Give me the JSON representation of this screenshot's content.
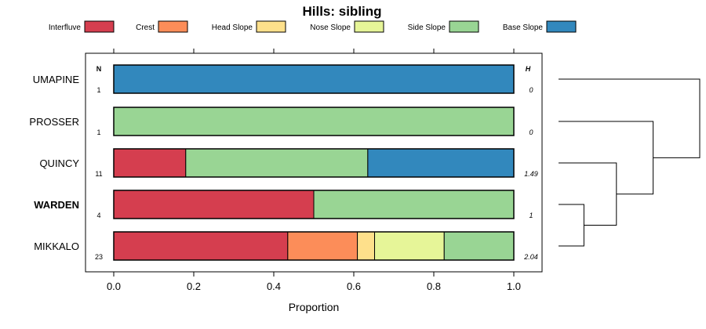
{
  "chart_data": {
    "type": "bar",
    "subtype": "stacked-horizontal-proportion",
    "title": "Hills: sibling",
    "xlabel": "Proportion",
    "xlim": [
      0,
      1
    ],
    "xticks": [
      "0.0",
      "0.2",
      "0.4",
      "0.6",
      "0.8",
      "1.0"
    ],
    "n_column_header": "N",
    "h_column_header": "H",
    "legend": [
      {
        "name": "Interfluve",
        "color": "#D53E4F"
      },
      {
        "name": "Crest",
        "color": "#FC8D59"
      },
      {
        "name": "Head Slope",
        "color": "#FEE08B"
      },
      {
        "name": "Nose Slope",
        "color": "#E6F598"
      },
      {
        "name": "Side Slope",
        "color": "#99D594"
      },
      {
        "name": "Base Slope",
        "color": "#3288BD"
      }
    ],
    "categories": [
      "UMAPINE",
      "PROSSER",
      "QUINCY",
      "WARDEN",
      "MIKKALO"
    ],
    "bold_category": "WARDEN",
    "n_values": [
      "1",
      "1",
      "11",
      "4",
      "23"
    ],
    "h_values": [
      "0",
      "0",
      "1.49",
      "1",
      "2.04"
    ],
    "series": [
      {
        "name": "Interfluve",
        "values": [
          0,
          0,
          0.18,
          0.5,
          0.435
        ]
      },
      {
        "name": "Crest",
        "values": [
          0,
          0,
          0,
          0,
          0.174
        ]
      },
      {
        "name": "Head Slope",
        "values": [
          0,
          0,
          0,
          0,
          0.043
        ]
      },
      {
        "name": "Nose Slope",
        "values": [
          0,
          0,
          0,
          0,
          0.174
        ]
      },
      {
        "name": "Side Slope",
        "values": [
          0,
          1,
          0.455,
          0.5,
          0.174
        ]
      },
      {
        "name": "Base Slope",
        "values": [
          1,
          0,
          0.365,
          0,
          0
        ]
      }
    ],
    "dendrogram": {
      "merges": [
        {
          "left": "WARDEN",
          "right": "MIKKALO",
          "height": 0.18
        },
        {
          "left": "QUINCY",
          "right": "WARDEN+MIKKALO",
          "height": 0.41
        },
        {
          "left": "PROSSER",
          "right": "QUINCY+WARDEN+MIKKALO",
          "height": 0.67
        },
        {
          "left": "UMAPINE",
          "right": "PROSSER+QUINCY+WARDEN+MIKKALO",
          "height": 1.0
        }
      ]
    }
  }
}
